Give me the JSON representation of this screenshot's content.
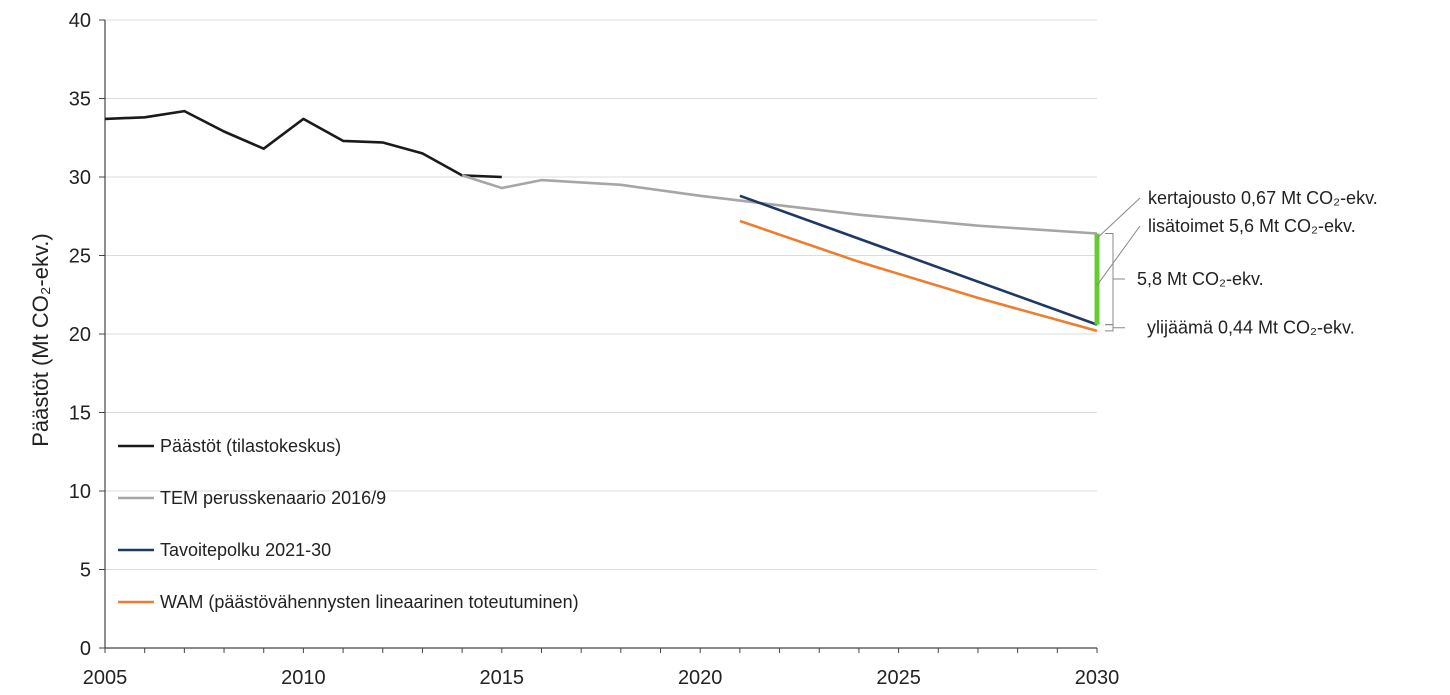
{
  "chart_data": {
    "type": "line",
    "title": "",
    "ylabel": "Päästöt (Mt CO₂-ekv.)",
    "xlabel": "",
    "xlim": [
      2005,
      2030
    ],
    "ylim": [
      0,
      40
    ],
    "x_ticks": [
      "2005",
      "2010",
      "2015",
      "2020",
      "2025",
      "2030"
    ],
    "y_ticks": [
      "0",
      "5",
      "10",
      "15",
      "20",
      "25",
      "30",
      "35",
      "40"
    ],
    "grid": "horizontal",
    "legend_position": "bottom-left inside",
    "series": [
      {
        "name": "Päästöt (tilastokeskus)",
        "color": "#1a1a1a",
        "x": [
          2005,
          2006,
          2007,
          2008,
          2009,
          2010,
          2011,
          2012,
          2013,
          2014,
          2015
        ],
        "y": [
          33.7,
          33.8,
          34.2,
          32.9,
          31.8,
          33.7,
          32.3,
          32.2,
          31.5,
          30.1,
          30.0
        ]
      },
      {
        "name": "TEM perusskenaario 2016/9",
        "color": "#a6a6a6",
        "x": [
          2014,
          2015,
          2016,
          2018,
          2020,
          2022,
          2024,
          2027,
          2030
        ],
        "y": [
          30.1,
          29.3,
          29.8,
          29.5,
          28.8,
          28.2,
          27.6,
          26.9,
          26.4
        ]
      },
      {
        "name": "Tavoitepolku 2021-30",
        "color": "#1f3864",
        "x": [
          2021,
          2030
        ],
        "y": [
          28.8,
          20.6
        ]
      },
      {
        "name": "WAM (päästövähennysten lineaarinen toteutuminen)",
        "color": "#ed7d31",
        "x": [
          2021,
          2024,
          2027,
          2030
        ],
        "y": [
          27.2,
          24.6,
          22.3,
          20.2
        ]
      }
    ],
    "bars": [
      {
        "x": 2030,
        "from": 20.6,
        "to": 26.4,
        "color": "#66cc33"
      }
    ],
    "annotations": [
      {
        "text": "kertajousto 0,67 Mt CO₂-ekv.",
        "points_to": {
          "x": 2030,
          "y": 26.1
        }
      },
      {
        "text": "lisätoimet 5,6 Mt CO₂-ekv.",
        "points_to": {
          "x": 2030,
          "y": 23.1
        }
      },
      {
        "text": "5,8 Mt CO₂-ekv.",
        "bracket": {
          "x": 2030,
          "from": 20.6,
          "to": 26.4
        }
      },
      {
        "text": "ylijäämä 0,44 Mt CO₂-ekv.",
        "bracket": {
          "x": 2030,
          "from": 20.2,
          "to": 20.6
        }
      }
    ]
  }
}
